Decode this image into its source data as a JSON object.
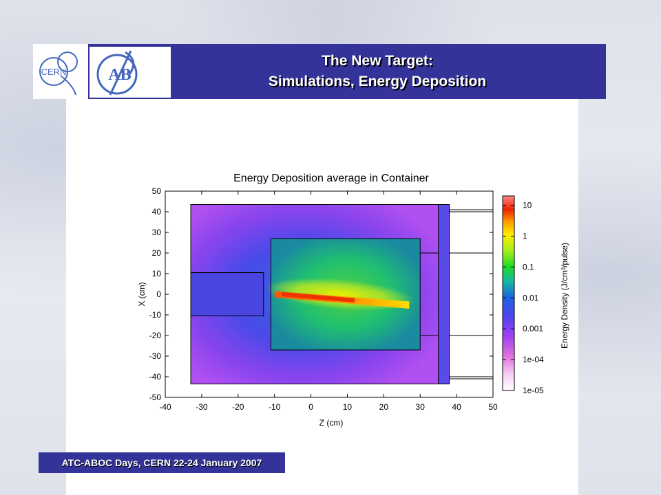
{
  "header": {
    "title_line1": "The New Target:",
    "title_line2": "Simulations, Energy Deposition",
    "logo_left_text": "CERN",
    "logo_right_text": "AB",
    "color": "#333399"
  },
  "footer": {
    "text": "ATC-ABOC Days, CERN 22-24 January 2007"
  },
  "chart_data": {
    "type": "heatmap",
    "title": "Energy Deposition average in Container",
    "xlabel": "Z (cm)",
    "ylabel": "X (cm)",
    "xlim": [
      -40,
      50
    ],
    "ylim": [
      -50,
      50
    ],
    "x_ticks": [
      -40,
      -30,
      -20,
      -10,
      0,
      10,
      20,
      30,
      40,
      50
    ],
    "y_ticks": [
      50,
      40,
      30,
      20,
      10,
      0,
      -10,
      -20,
      -30,
      -40,
      -50
    ],
    "colorbar": {
      "label": "Energy Density (J/cm³/pulse)",
      "scale": "log",
      "range": [
        1e-05,
        20
      ],
      "tick_labels": [
        "10",
        "1",
        "0.1",
        "0.01",
        "0.001",
        "1e-04",
        "1e-05"
      ],
      "tick_values": [
        10,
        1,
        0.1,
        0.01,
        0.001,
        0.0001,
        1e-05
      ]
    },
    "geometry_outlines": [
      {
        "z": [
          -33,
          38
        ],
        "x": [
          -43.5,
          43.5
        ]
      },
      {
        "z": [
          -11,
          30
        ],
        "x": [
          -27,
          27
        ]
      },
      {
        "z": [
          -33,
          -13
        ],
        "x": [
          -10.5,
          10.5
        ]
      },
      {
        "z": [
          35,
          38
        ],
        "x": [
          -43.5,
          43.5
        ]
      },
      {
        "z": [
          38,
          50
        ],
        "x": [
          -41,
          41
        ]
      }
    ],
    "grid": false
  }
}
